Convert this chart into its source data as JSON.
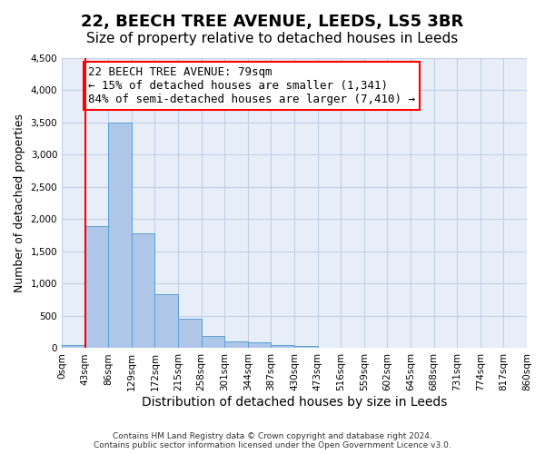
{
  "title": "22, BEECH TREE AVENUE, LEEDS, LS5 3BR",
  "subtitle": "Size of property relative to detached houses in Leeds",
  "xlabel": "Distribution of detached houses by size in Leeds",
  "ylabel": "Number of detached properties",
  "bar_values": [
    50,
    1900,
    3500,
    1775,
    840,
    460,
    190,
    100,
    85,
    50,
    30,
    0,
    0,
    0,
    0,
    0,
    0,
    0,
    0,
    0
  ],
  "bin_labels": [
    "0sqm",
    "43sqm",
    "86sqm",
    "129sqm",
    "172sqm",
    "215sqm",
    "258sqm",
    "301sqm",
    "344sqm",
    "387sqm",
    "430sqm",
    "473sqm",
    "516sqm",
    "559sqm",
    "602sqm",
    "645sqm",
    "688sqm",
    "731sqm",
    "774sqm",
    "817sqm",
    "860sqm"
  ],
  "bar_color": "#aec6e8",
  "bar_edge_color": "#5a9fd4",
  "vline_color": "red",
  "annotation_text": "22 BEECH TREE AVENUE: 79sqm\n← 15% of detached houses are smaller (1,341)\n84% of semi-detached houses are larger (7,410) →",
  "annotation_box_color": "white",
  "annotation_box_edge_color": "red",
  "annotation_fontsize": 9,
  "ylim": [
    0,
    4500
  ],
  "yticks": [
    0,
    500,
    1000,
    1500,
    2000,
    2500,
    3000,
    3500,
    4000,
    4500
  ],
  "grid_color": "#c0d0e8",
  "background_color": "#e8eef8",
  "footer_line1": "Contains HM Land Registry data © Crown copyright and database right 2024.",
  "footer_line2": "Contains public sector information licensed under the Open Government Licence v3.0.",
  "title_fontsize": 13,
  "subtitle_fontsize": 11,
  "xlabel_fontsize": 10,
  "ylabel_fontsize": 9,
  "tick_fontsize": 7.5
}
